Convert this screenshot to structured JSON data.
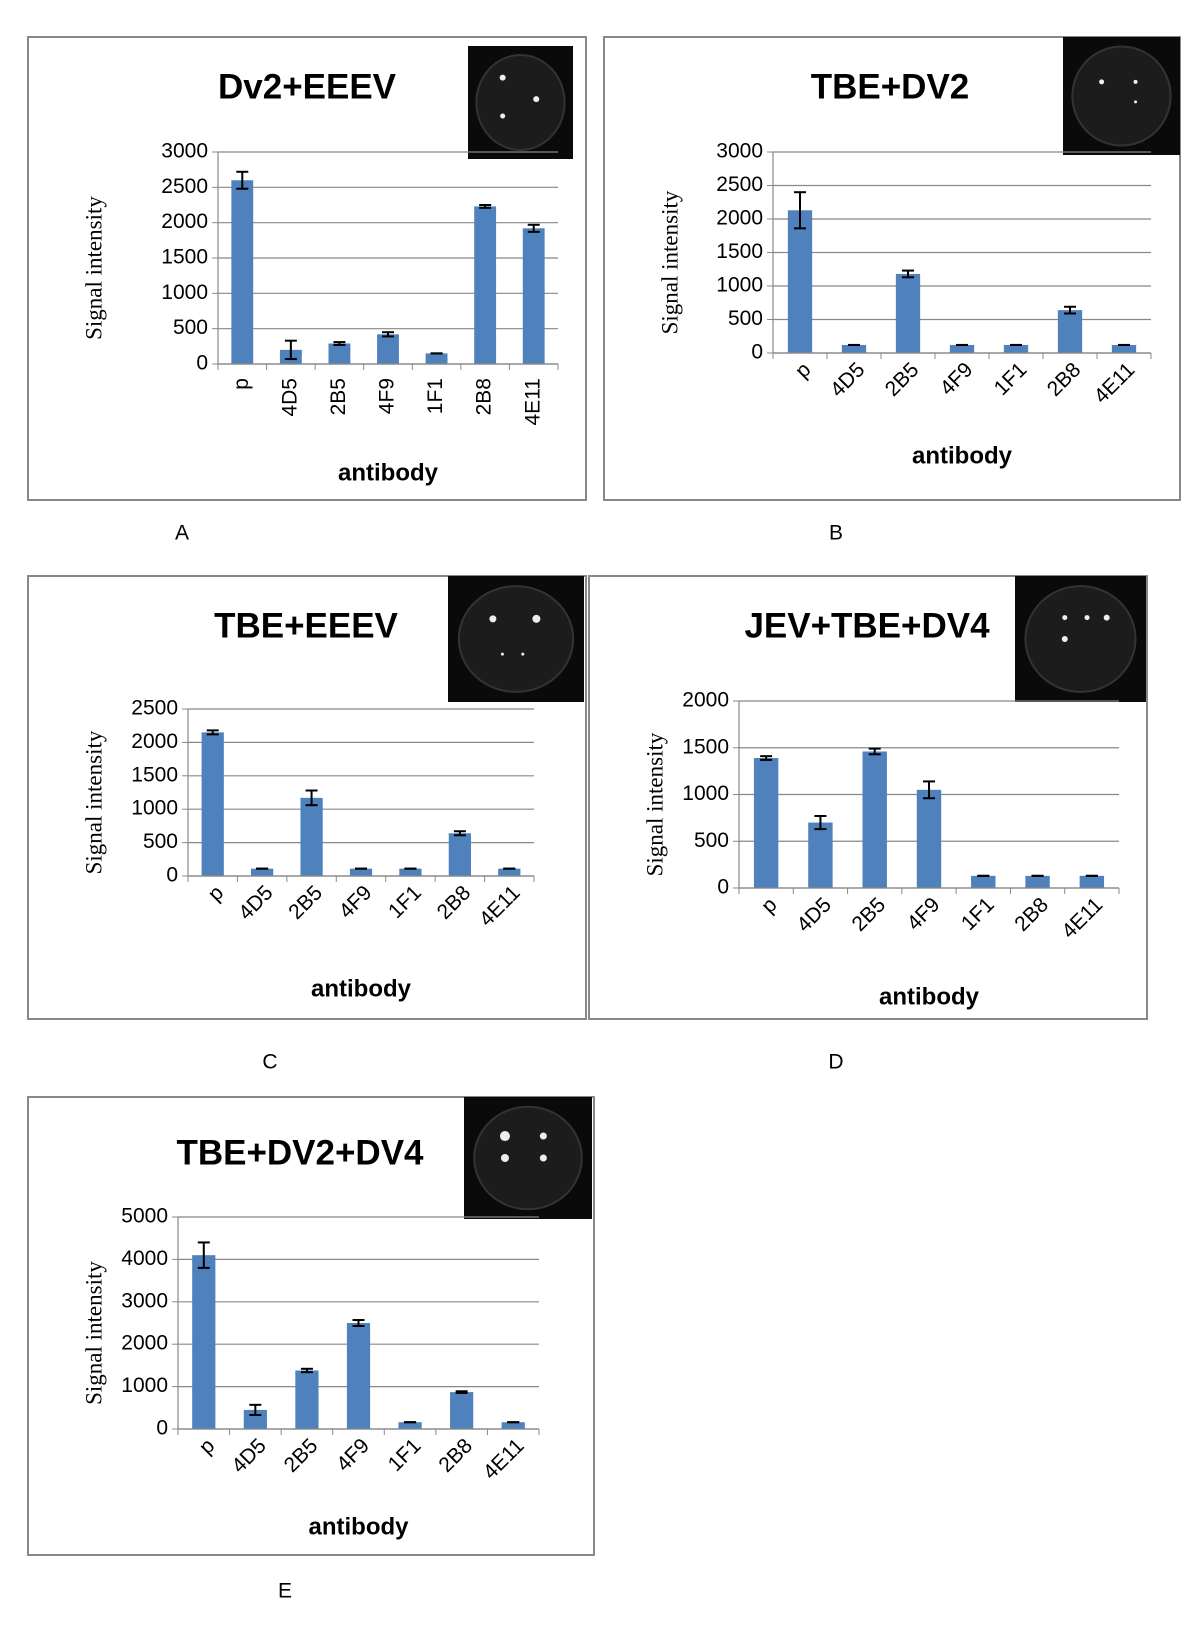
{
  "chart_data": [
    {
      "type": "bar",
      "title": "Dv2+EEEV",
      "panel": "A",
      "xlabel": "antibody",
      "ylabel": "Signal intensity",
      "categories": [
        "p",
        "4D5",
        "2B5",
        "4F9",
        "1F1",
        "2B8",
        "4E11"
      ],
      "values": [
        2600,
        200,
        290,
        420,
        150,
        2230,
        1920
      ],
      "errors": [
        120,
        130,
        20,
        30,
        0,
        20,
        50
      ],
      "color": "#4f81bd",
      "ylim": [
        0,
        3000
      ],
      "yticks": [
        0,
        500,
        1000,
        1500,
        2000,
        2500,
        3000
      ],
      "grid": true,
      "xtick_rotation": -90
    },
    {
      "type": "bar",
      "title": "TBE+DV2",
      "panel": "B",
      "xlabel": "antibody",
      "ylabel": "Signal intensity",
      "categories": [
        "p",
        "4D5",
        "2B5",
        "4F9",
        "1F1",
        "2B8",
        "4E11"
      ],
      "values": [
        2130,
        120,
        1180,
        120,
        120,
        640,
        120
      ],
      "errors": [
        270,
        0,
        50,
        0,
        0,
        50,
        0
      ],
      "color": "#4f81bd",
      "ylim": [
        0,
        3000
      ],
      "yticks": [
        0,
        500,
        1000,
        1500,
        2000,
        2500,
        3000
      ],
      "grid": true,
      "xtick_rotation": -45
    },
    {
      "type": "bar",
      "title": "TBE+EEEV",
      "panel": "C",
      "xlabel": "antibody",
      "ylabel": "Signal intensity",
      "categories": [
        "p",
        "4D5",
        "2B5",
        "4F9",
        "1F1",
        "2B8",
        "4E11"
      ],
      "values": [
        2150,
        110,
        1170,
        110,
        110,
        640,
        110
      ],
      "errors": [
        30,
        0,
        110,
        0,
        0,
        30,
        0
      ],
      "color": "#4f81bd",
      "ylim": [
        0,
        2500
      ],
      "yticks": [
        0,
        500,
        1000,
        1500,
        2000,
        2500
      ],
      "grid": true,
      "xtick_rotation": -45
    },
    {
      "type": "bar",
      "title": "JEV+TBE+DV4",
      "panel": "D",
      "xlabel": "antibody",
      "ylabel": "Signal intensity",
      "categories": [
        "p",
        "4D5",
        "2B5",
        "4F9",
        "1F1",
        "2B8",
        "4E11"
      ],
      "values": [
        1390,
        700,
        1460,
        1050,
        130,
        130,
        130
      ],
      "errors": [
        20,
        70,
        30,
        90,
        0,
        0,
        0
      ],
      "color": "#4f81bd",
      "ylim": [
        0,
        2000
      ],
      "yticks": [
        0,
        500,
        1000,
        1500,
        2000
      ],
      "grid": true,
      "xtick_rotation": -45
    },
    {
      "type": "bar",
      "title": "TBE+DV2+DV4",
      "panel": "E",
      "xlabel": "antibody",
      "ylabel": "Signal intensity",
      "categories": [
        "p",
        "4D5",
        "2B5",
        "4F9",
        "1F1",
        "2B8",
        "4E11"
      ],
      "values": [
        4100,
        450,
        1380,
        2500,
        160,
        870,
        160
      ],
      "errors": [
        300,
        120,
        40,
        70,
        0,
        20,
        0
      ],
      "color": "#4f81bd",
      "ylim": [
        0,
        5000
      ],
      "yticks": [
        0,
        1000,
        2000,
        3000,
        4000,
        5000
      ],
      "grid": true,
      "xtick_rotation": -45
    }
  ]
}
